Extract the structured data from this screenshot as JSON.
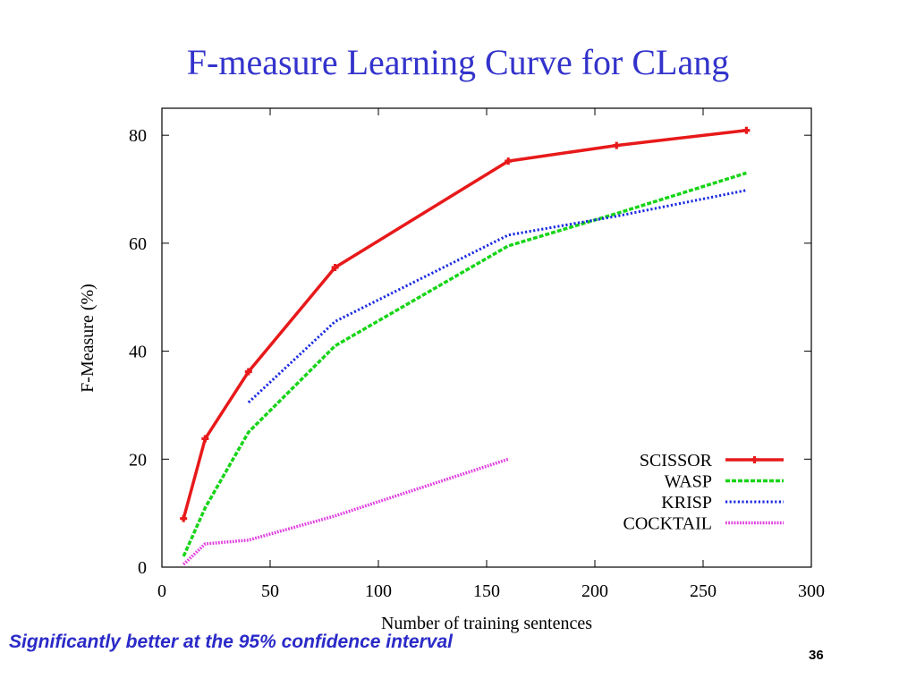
{
  "slide": {
    "title": "F-measure Learning Curve for CLang",
    "footer_note": "Significantly better at the 95% confidence interval",
    "page_number": "36"
  },
  "chart_data": {
    "type": "line",
    "xlabel": "Number of training sentences",
    "ylabel": "F-Measure (%)",
    "xlim": [
      0,
      300
    ],
    "ylim": [
      0,
      85
    ],
    "xticks": [
      0,
      50,
      100,
      150,
      200,
      250,
      300
    ],
    "yticks": [
      0,
      20,
      40,
      60,
      80
    ],
    "grid": false,
    "legend_position": "bottom-right",
    "series": [
      {
        "name": "SCISSOR",
        "color": "#e8191a",
        "style": "solid",
        "markers": true,
        "x": [
          10,
          20,
          40,
          80,
          160,
          210,
          270
        ],
        "y": [
          9,
          23.8,
          36.2,
          55.5,
          75.2,
          78.1,
          80.9
        ]
      },
      {
        "name": "WASP",
        "color": "#18d418",
        "style": "dashed",
        "markers": false,
        "x": [
          10,
          20,
          40,
          80,
          160,
          210,
          270
        ],
        "y": [
          2,
          11,
          25,
          41,
          59.5,
          65.5,
          73
        ]
      },
      {
        "name": "KRISP",
        "color": "#1a2be0",
        "style": "dotted",
        "markers": false,
        "x": [
          40,
          80,
          160,
          210,
          270
        ],
        "y": [
          30.5,
          45.5,
          61.5,
          65,
          69.8
        ]
      },
      {
        "name": "COCKTAIL",
        "color": "#e040e0",
        "style": "dotted-thick",
        "markers": false,
        "x": [
          10,
          20,
          40,
          80,
          160
        ],
        "y": [
          0.5,
          4.3,
          5,
          9.5,
          20
        ]
      }
    ]
  }
}
